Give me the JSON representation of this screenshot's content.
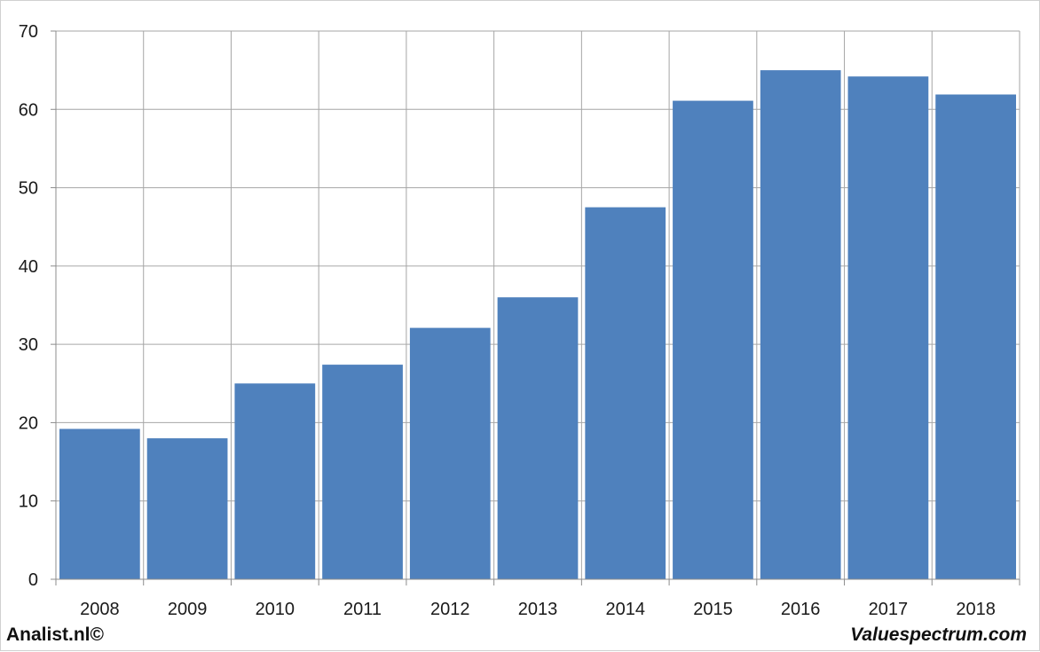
{
  "chart_data": {
    "type": "bar",
    "categories": [
      "2008",
      "2009",
      "2010",
      "2011",
      "2012",
      "2013",
      "2014",
      "2015",
      "2016",
      "2017",
      "2018"
    ],
    "values": [
      19.2,
      18.0,
      25.0,
      27.4,
      32.1,
      36.0,
      47.5,
      61.1,
      65.0,
      64.2,
      61.9
    ],
    "ylim": [
      0,
      70
    ],
    "yticks": [
      0,
      10,
      20,
      30,
      40,
      50,
      60,
      70
    ],
    "title": "",
    "xlabel": "",
    "ylabel": "",
    "grid": true,
    "legend": "none",
    "colors": {
      "bar": "#4f81bd",
      "grid": "#a6a6a6",
      "axis": "#8c8c8c"
    }
  },
  "footer": {
    "left_text": "Analist.nl©",
    "right_text": "Valuespectrum.com"
  }
}
